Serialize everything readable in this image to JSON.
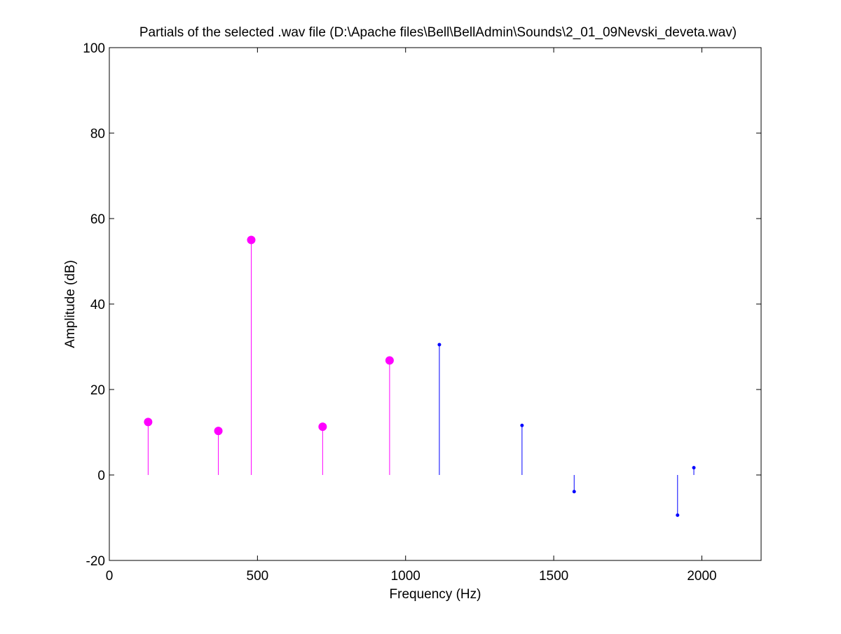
{
  "figure_bg": "#ffffff",
  "chart_data": {
    "type": "stem",
    "title": "Partials of the selected .wav file (D:\\Apache files\\Bell\\BellAdmin\\Sounds\\2_01_09Nevski_deveta.wav)",
    "xlabel": "Frequency (Hz)",
    "ylabel": "Amplitude (dB)",
    "xlim": [
      0,
      2200
    ],
    "ylim": [
      -20,
      100
    ],
    "xticks": [
      0,
      500,
      1000,
      1500,
      2000
    ],
    "yticks": [
      -20,
      0,
      20,
      40,
      60,
      80,
      100
    ],
    "xtick_labels": [
      "0",
      "500",
      "1000",
      "1500",
      "2000"
    ],
    "ytick_labels": [
      "-20",
      "0",
      "20",
      "40",
      "60",
      "80",
      "100"
    ],
    "grid": false,
    "legend": "none",
    "series": [
      {
        "color": "#ff00ff",
        "marker": "filled-circle",
        "x": [
          131,
          368,
          479,
          720,
          946
        ],
        "y": [
          12.4,
          10.3,
          55.0,
          11.3,
          26.8
        ]
      },
      {
        "color": "#0000ff",
        "marker": "dot",
        "x": [
          1114,
          1393,
          1569,
          1918,
          1973
        ],
        "y": [
          30.5,
          11.6,
          -3.9,
          -9.4,
          1.7
        ]
      }
    ]
  }
}
